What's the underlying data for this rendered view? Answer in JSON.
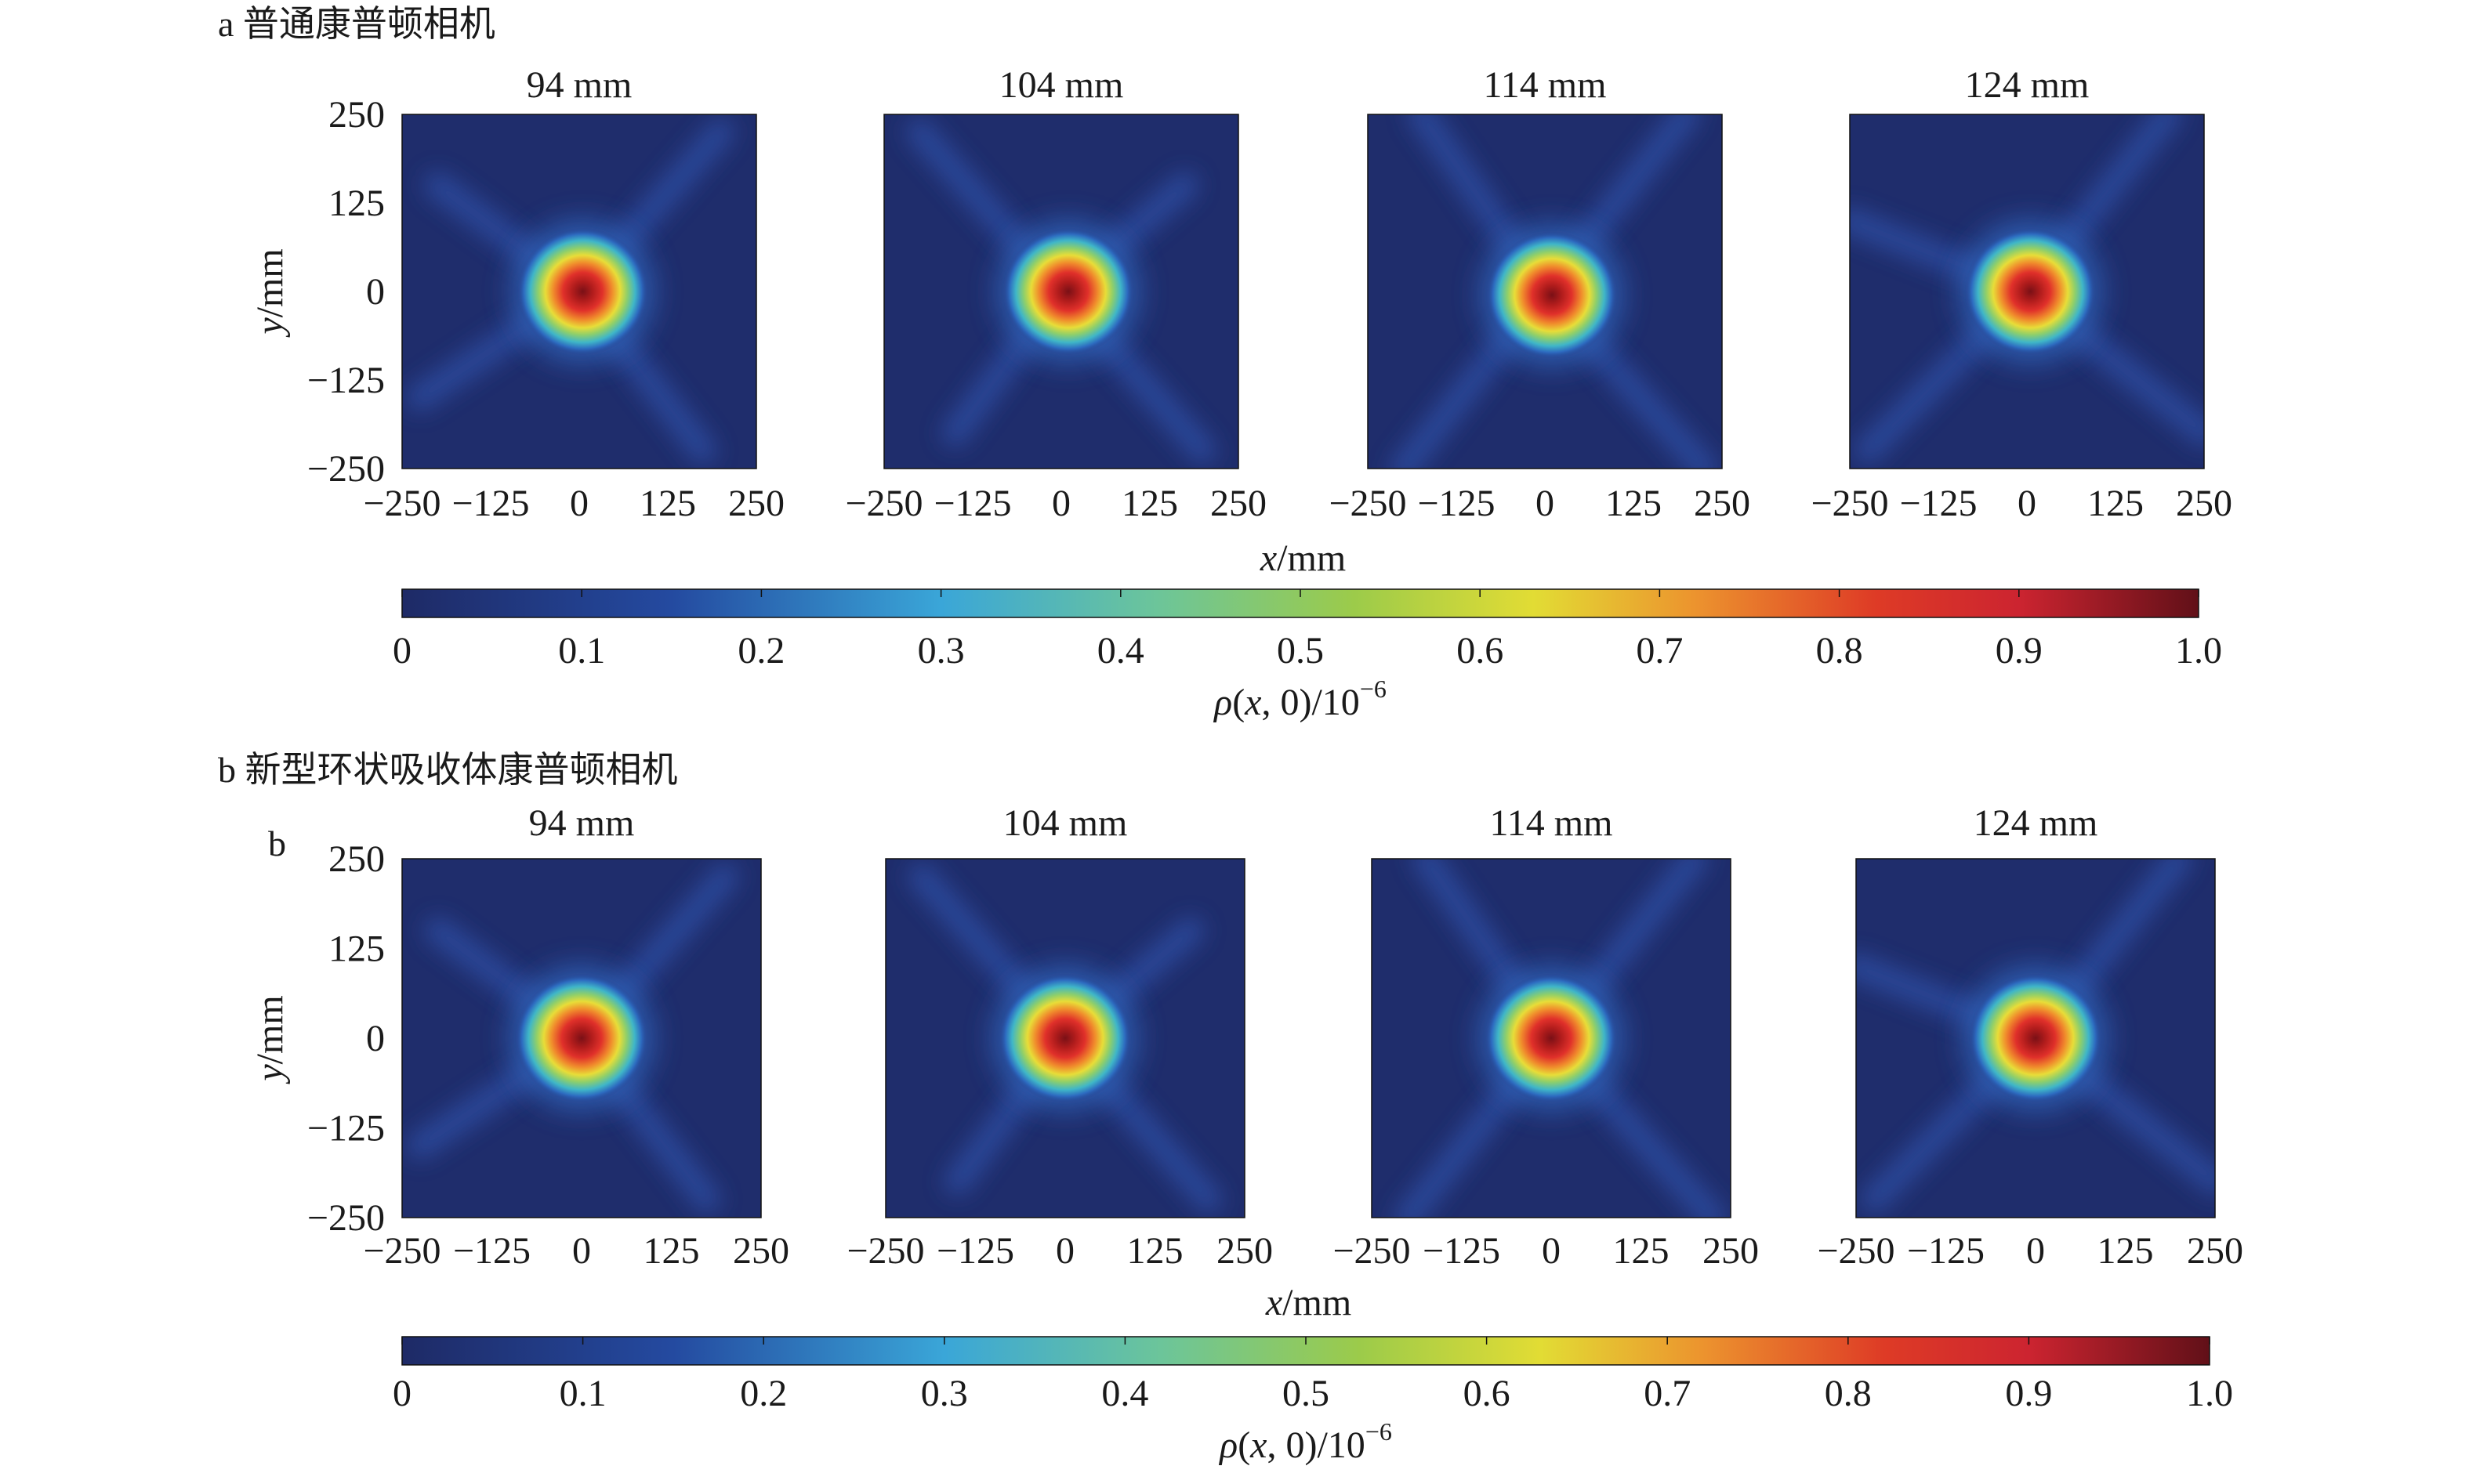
{
  "chart_data": [
    {
      "type": "heatmap",
      "panel_label": "a 普通康普顿相机",
      "row_label": "",
      "subplot_titles": [
        "94 mm",
        "104 mm",
        "114 mm",
        "124 mm"
      ],
      "xlabel_var": "x",
      "xlabel_unit": "/mm",
      "ylabel_var": "y",
      "ylabel_unit": "/mm",
      "xlim": [
        -250,
        250
      ],
      "ylim": [
        -250,
        250
      ],
      "x_ticks": [
        "−250",
        "−125",
        "0",
        "125",
        "250"
      ],
      "y_ticks": [
        "250",
        "125",
        "0",
        "−125",
        "−250"
      ],
      "colorbar": {
        "ticks": [
          "0",
          "0.1",
          "0.2",
          "0.3",
          "0.4",
          "0.5",
          "0.6",
          "0.7",
          "0.8",
          "0.9",
          "1.0"
        ],
        "label_var": "ρ",
        "label_args": "(",
        "label_args_var": "x",
        "label_args_rest": ", 0)/10",
        "label_exp": "−6",
        "range": [
          0,
          1.0
        ]
      },
      "images": [
        {
          "peak_x": 5,
          "peak_y": 0,
          "peak_value": 1.0
        },
        {
          "peak_x": 10,
          "peak_y": 0,
          "peak_value": 1.0
        },
        {
          "peak_x": 10,
          "peak_y": -5,
          "peak_value": 1.0
        },
        {
          "peak_x": 5,
          "peak_y": 0,
          "peak_value": 1.0
        }
      ]
    },
    {
      "type": "heatmap",
      "panel_label": "b 新型环状吸收体康普顿相机",
      "row_label": "b",
      "subplot_titles": [
        "94 mm",
        "104 mm",
        "114 mm",
        "124 mm"
      ],
      "xlabel_var": "x",
      "xlabel_unit": "/mm",
      "ylabel_var": "y",
      "ylabel_unit": "/mm",
      "xlim": [
        -250,
        250
      ],
      "ylim": [
        -250,
        250
      ],
      "x_ticks": [
        "−250",
        "−125",
        "0",
        "125",
        "250"
      ],
      "y_ticks": [
        "250",
        "125",
        "0",
        "−125",
        "−250"
      ],
      "colorbar": {
        "ticks": [
          "0",
          "0.1",
          "0.2",
          "0.3",
          "0.4",
          "0.5",
          "0.6",
          "0.7",
          "0.8",
          "0.9",
          "1.0"
        ],
        "label_var": "ρ",
        "label_args": "(",
        "label_args_var": "x",
        "label_args_rest": ", 0)/10",
        "label_exp": "−6",
        "range": [
          0,
          1.0
        ]
      },
      "images": [
        {
          "peak_x": 0,
          "peak_y": 0,
          "peak_value": 1.0
        },
        {
          "peak_x": 0,
          "peak_y": 0,
          "peak_value": 1.0
        },
        {
          "peak_x": 0,
          "peak_y": 0,
          "peak_value": 1.0
        },
        {
          "peak_x": 0,
          "peak_y": 0,
          "peak_value": 1.0
        }
      ]
    }
  ],
  "colors": {
    "map_low": "#1d2d6b",
    "map_mid_blue": "#2a5bb0",
    "map_cyan": "#3bb3d6",
    "map_green": "#7ec46a",
    "map_yellow": "#e4dc35",
    "map_orange": "#ec8a2f",
    "map_red": "#d42a26",
    "map_high": "#7a1016"
  }
}
